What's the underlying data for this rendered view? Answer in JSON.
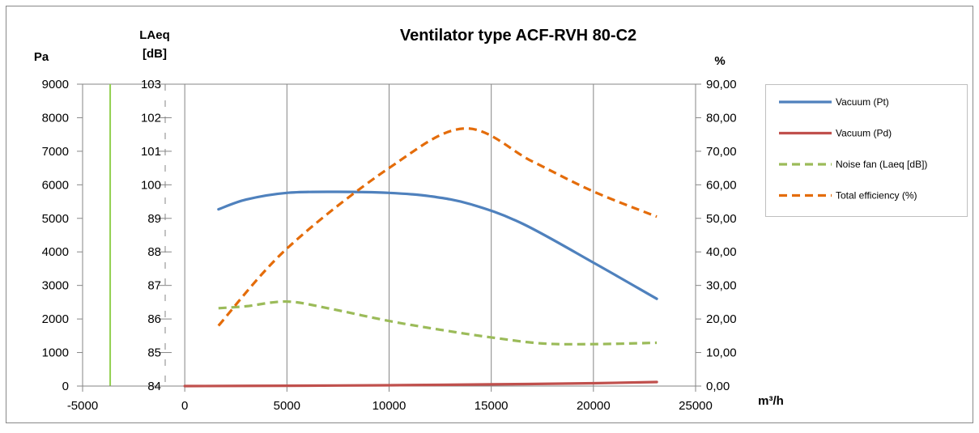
{
  "chart_data": {
    "type": "line",
    "title": "Ventilator type ACF-RVH 80-C2",
    "xlabel": "m³/h",
    "ylabel_left": "Pa",
    "ylabel_middle": "LAeq [dB]",
    "ylabel_right": "%",
    "xlim": [
      -5000,
      25000
    ],
    "x_ticks": [
      "-5000",
      "0",
      "5000",
      "10000",
      "15000",
      "20000",
      "25000"
    ],
    "ylim_left": [
      0,
      9000
    ],
    "y_ticks_left": [
      "0",
      "1000",
      "2000",
      "3000",
      "4000",
      "5000",
      "6000",
      "7000",
      "8000",
      "9000"
    ],
    "ylim_middle": [
      84,
      103
    ],
    "y_ticks_middle": [
      "84",
      "85",
      "86",
      "87",
      "88",
      "89",
      "100",
      "101",
      "102",
      "103"
    ],
    "ylim_right": [
      0,
      90
    ],
    "y_ticks_right": [
      "0,00",
      "10,00",
      "20,00",
      "30,00",
      "40,00",
      "50,00",
      "60,00",
      "70,00",
      "80,00",
      "90,00"
    ],
    "grid": "vertical",
    "legend_position": "right",
    "series": [
      {
        "name": "Vacuum (Pt)",
        "axis": "left",
        "color": "#4f81bd",
        "style": "solid",
        "points": [
          [
            1650,
            5270
          ],
          [
            3000,
            5560
          ],
          [
            5000,
            5760
          ],
          [
            7500,
            5790
          ],
          [
            10000,
            5760
          ],
          [
            12000,
            5660
          ],
          [
            14000,
            5420
          ],
          [
            16500,
            4850
          ],
          [
            20000,
            3680
          ],
          [
            23100,
            2600
          ]
        ]
      },
      {
        "name": "Vacuum (Pd)",
        "axis": "left",
        "color": "#c0504d",
        "style": "solid",
        "points": [
          [
            0,
            0
          ],
          [
            5000,
            10
          ],
          [
            10000,
            25
          ],
          [
            15000,
            50
          ],
          [
            20000,
            85
          ],
          [
            23100,
            120
          ]
        ]
      },
      {
        "name": "Noise fan (Laeq [dB])",
        "axis": "middle",
        "color": "#9bbb59",
        "style": "dashed",
        "points_labels": [
          "86.3",
          "86.3",
          "86.55",
          "86.1",
          "85.9",
          "85.65",
          "85.45",
          "85.3",
          "85.25",
          "85.3"
        ],
        "points": [
          [
            1650,
            2320
          ],
          [
            3000,
            2380
          ],
          [
            5000,
            2520
          ],
          [
            7000,
            2320
          ],
          [
            10000,
            1940
          ],
          [
            12500,
            1680
          ],
          [
            15000,
            1450
          ],
          [
            17500,
            1270
          ],
          [
            20000,
            1250
          ],
          [
            23100,
            1290
          ]
        ]
      },
      {
        "name": "Total efficiency (%)",
        "axis": "right",
        "color": "#e46c0a",
        "style": "dashed",
        "points": [
          [
            1650,
            18
          ],
          [
            5000,
            41
          ],
          [
            10000,
            65
          ],
          [
            13700,
            76.8
          ],
          [
            17000,
            67
          ],
          [
            20000,
            58
          ],
          [
            23100,
            50.5
          ]
        ]
      }
    ]
  }
}
